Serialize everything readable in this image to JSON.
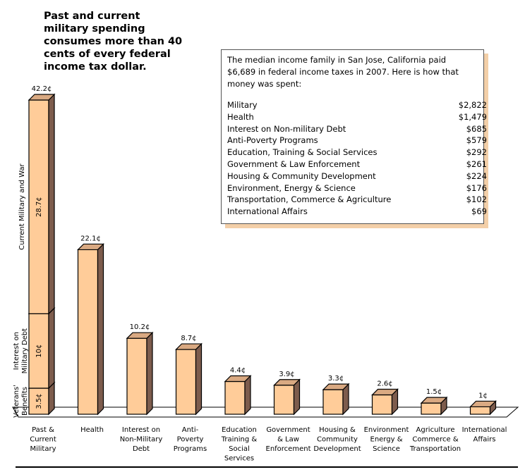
{
  "headline": {
    "lines": [
      "Past and current",
      "military spending",
      "consumes more than 40",
      "cents of every federal",
      "income tax dollar."
    ]
  },
  "info_box": {
    "intro_lines": [
      "The median income family in San Jose, California paid",
      "$6,689 in federal income taxes in 2007.  Here is how that",
      "money was spent:"
    ],
    "rows": [
      {
        "label": "Military",
        "amount": "$2,822"
      },
      {
        "label": "Health",
        "amount": "$1,479"
      },
      {
        "label": "Interest on Non-military Debt",
        "amount": "$685"
      },
      {
        "label": "Anti-Poverty Programs",
        "amount": "$579"
      },
      {
        "label": "Education, Training & Social Services",
        "amount": "$292"
      },
      {
        "label": "Government & Law Enforcement",
        "amount": "$261"
      },
      {
        "label": "Housing & Community Development",
        "amount": "$224"
      },
      {
        "label": "Environment, Energy & Science",
        "amount": "$176"
      },
      {
        "label": "Transportation, Commerce & Agriculture",
        "amount": "$102"
      },
      {
        "label": "International Affairs",
        "amount": "$69"
      }
    ]
  },
  "colors": {
    "bar_front": "#ffcc99",
    "bar_top": "#d9a982",
    "bar_side": "#7d5c4d",
    "box_shadow": "#f3cfa8"
  },
  "chart_data": {
    "type": "bar",
    "style": "3d-column",
    "unit": "¢",
    "categories": [
      [
        "Past &",
        "Current",
        "Military"
      ],
      [
        "Health"
      ],
      [
        "Interest on",
        "Non-Military",
        "Debt"
      ],
      [
        "Anti-",
        "Poverty",
        "Programs"
      ],
      [
        "Education",
        "Training &",
        "Social",
        "Services"
      ],
      [
        "Government",
        "& Law",
        "Enforcement"
      ],
      [
        "Housing &",
        "Community",
        "Development"
      ],
      [
        "Environment",
        "Energy &",
        "Science"
      ],
      [
        "Agriculture",
        "Commerce &",
        "Transportation"
      ],
      [
        "International",
        "Affairs"
      ]
    ],
    "values": [
      42.2,
      22.1,
      10.2,
      8.7,
      4.4,
      3.9,
      3.3,
      2.6,
      1.5,
      1
    ],
    "value_labels": [
      "42.2¢",
      "22.1¢",
      "10.2¢",
      "8.7¢",
      "4.4¢",
      "3.9¢",
      "3.3¢",
      "2.6¢",
      "1.5¢",
      "1¢"
    ],
    "stacked_first_bar": [
      {
        "name": "Veterans' Benefits",
        "name_lines": [
          "Veterans'",
          "Benefits"
        ],
        "value": 3.5,
        "label": "3.5¢"
      },
      {
        "name": "Interest on Military Debt",
        "name_lines": [
          "Interest on",
          "Military Debt"
        ],
        "value": 10,
        "label": "10¢"
      },
      {
        "name": "Current Military and War",
        "name_lines": [
          "Current Military and War"
        ],
        "value": 28.7,
        "label": "28.7¢"
      }
    ],
    "ylim": [
      0,
      42.2
    ],
    "grid": false,
    "axes_visible": false
  }
}
